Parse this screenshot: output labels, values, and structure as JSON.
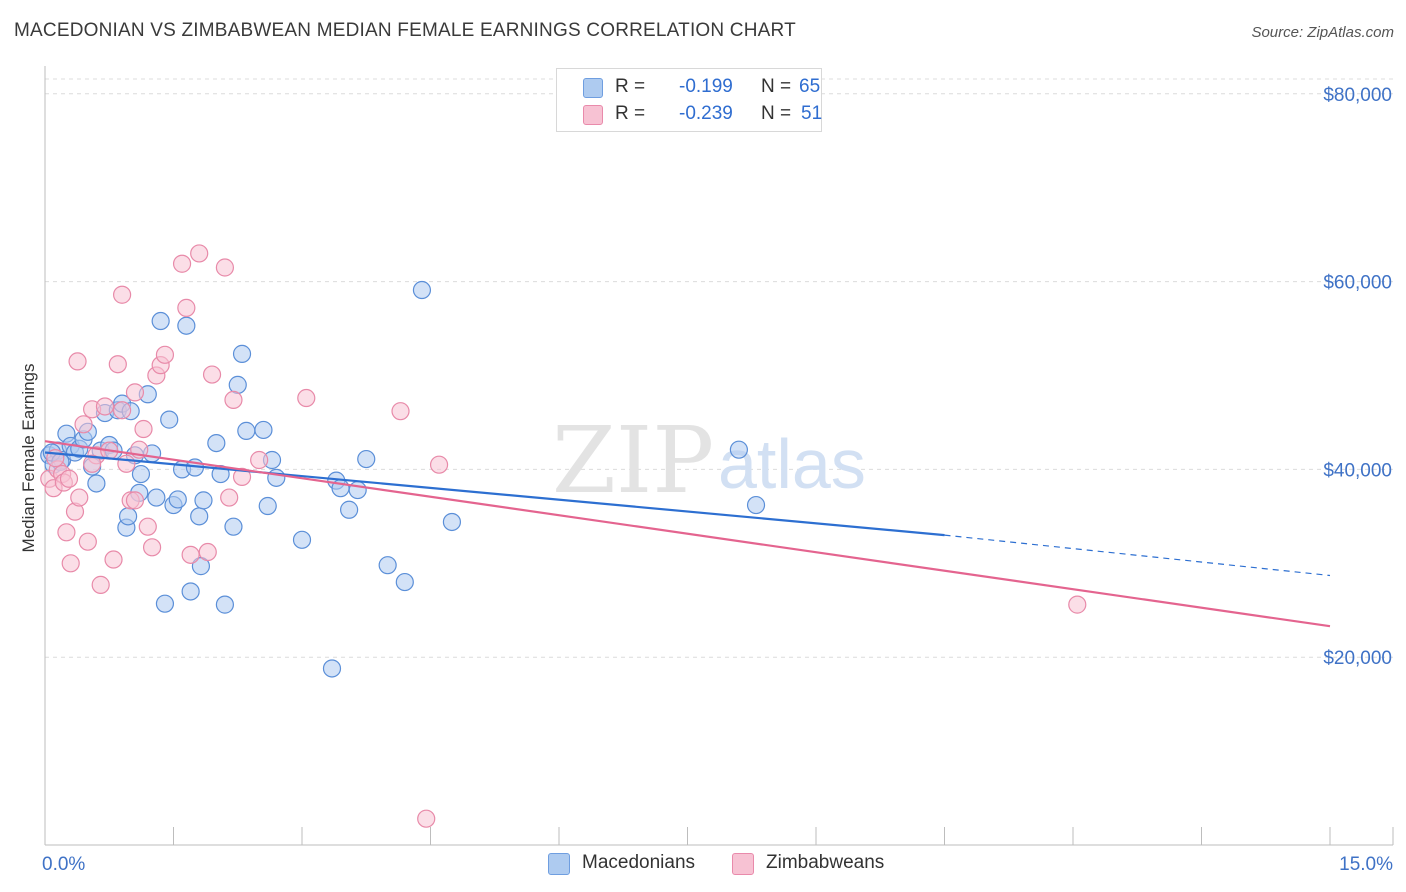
{
  "title": "MACEDONIAN VS ZIMBABWEAN MEDIAN FEMALE EARNINGS CORRELATION CHART",
  "source": "Source: ZipAtlas.com",
  "watermark": {
    "zip": "ZIP",
    "atlas": "atlas"
  },
  "legend_top": {
    "r_label": "R =",
    "n_label": "N =",
    "rows": [
      {
        "r": "-0.199",
        "n": "65",
        "color": "#aecbf0",
        "border": "#6f9ee0"
      },
      {
        "r": "-0.239",
        "n": "51",
        "color": "#f7c2d3",
        "border": "#e98aab"
      }
    ]
  },
  "legend_bottom": [
    {
      "label": "Macedonians",
      "color": "#aecbf0",
      "border": "#6f9ee0"
    },
    {
      "label": "Zimbabweans",
      "color": "#f7c2d3",
      "border": "#e98aab"
    }
  ],
  "chart_data": {
    "type": "scatter",
    "title": "MACEDONIAN VS ZIMBABWEAN MEDIAN FEMALE EARNINGS CORRELATION CHART",
    "xlabel": "",
    "ylabel": "Median Female Earnings",
    "xlim": [
      0,
      15
    ],
    "ylim": [
      0,
      82000
    ],
    "x_tick_labels": [
      "0.0%",
      "15.0%"
    ],
    "y_ticks": [
      20000,
      40000,
      60000,
      80000
    ],
    "y_tick_labels": [
      "$20,000",
      "$40,000",
      "$60,000",
      "$80,000"
    ],
    "series": [
      {
        "name": "Macedonians",
        "color": "#5b8fd8",
        "fill": "#aecbf0",
        "trend_color": "#2d6fd1",
        "trend": {
          "x_start": 0.0,
          "y_start": 41800,
          "x_end": 10.5,
          "y_end": 33000,
          "x_dash_end": 15.0,
          "y_dash_end": 28700
        },
        "points": [
          [
            0.05,
            41500
          ],
          [
            0.1,
            40500
          ],
          [
            0.15,
            42000
          ],
          [
            0.2,
            41000
          ],
          [
            0.25,
            43800
          ],
          [
            0.3,
            42500
          ],
          [
            0.35,
            41800
          ],
          [
            0.4,
            42200
          ],
          [
            0.45,
            43200
          ],
          [
            0.5,
            44000
          ],
          [
            0.55,
            40300
          ],
          [
            0.6,
            38500
          ],
          [
            0.65,
            42000
          ],
          [
            0.7,
            46000
          ],
          [
            0.75,
            42600
          ],
          [
            0.8,
            42000
          ],
          [
            0.85,
            46300
          ],
          [
            0.9,
            47000
          ],
          [
            0.95,
            33800
          ],
          [
            0.97,
            35000
          ],
          [
            1.0,
            46200
          ],
          [
            1.05,
            41500
          ],
          [
            1.1,
            37500
          ],
          [
            1.12,
            39500
          ],
          [
            1.2,
            48000
          ],
          [
            1.25,
            41700
          ],
          [
            1.3,
            37000
          ],
          [
            1.35,
            55800
          ],
          [
            1.4,
            25700
          ],
          [
            1.45,
            45300
          ],
          [
            1.5,
            36200
          ],
          [
            1.55,
            36800
          ],
          [
            1.6,
            40000
          ],
          [
            1.65,
            55300
          ],
          [
            1.7,
            27000
          ],
          [
            1.75,
            40200
          ],
          [
            1.8,
            35000
          ],
          [
            1.82,
            29700
          ],
          [
            1.85,
            36700
          ],
          [
            2.0,
            42800
          ],
          [
            2.05,
            39500
          ],
          [
            2.1,
            25600
          ],
          [
            2.2,
            33900
          ],
          [
            2.25,
            49000
          ],
          [
            2.3,
            52300
          ],
          [
            2.35,
            44100
          ],
          [
            2.55,
            44200
          ],
          [
            2.6,
            36100
          ],
          [
            2.65,
            41000
          ],
          [
            2.7,
            39100
          ],
          [
            3.0,
            32500
          ],
          [
            3.35,
            18800
          ],
          [
            3.4,
            38800
          ],
          [
            3.45,
            38000
          ],
          [
            3.55,
            35700
          ],
          [
            3.65,
            37800
          ],
          [
            3.75,
            41100
          ],
          [
            4.0,
            29800
          ],
          [
            4.2,
            28000
          ],
          [
            4.4,
            59100
          ],
          [
            4.75,
            34400
          ],
          [
            8.1,
            42100
          ],
          [
            8.3,
            36200
          ],
          [
            0.08,
            41800
          ],
          [
            0.18,
            40800
          ]
        ]
      },
      {
        "name": "Zimbabweans",
        "color": "#e88aa9",
        "fill": "#f7c2d3",
        "trend_color": "#e4648f",
        "trend": {
          "x_start": 0.0,
          "y_start": 43000,
          "x_end": 15.0,
          "y_end": 23300
        },
        "points": [
          [
            0.05,
            39000
          ],
          [
            0.1,
            38000
          ],
          [
            0.15,
            40000
          ],
          [
            0.2,
            39500
          ],
          [
            0.25,
            33300
          ],
          [
            0.3,
            30000
          ],
          [
            0.35,
            35500
          ],
          [
            0.38,
            51500
          ],
          [
            0.4,
            37000
          ],
          [
            0.45,
            44800
          ],
          [
            0.5,
            32300
          ],
          [
            0.55,
            46400
          ],
          [
            0.6,
            41500
          ],
          [
            0.65,
            27700
          ],
          [
            0.7,
            46700
          ],
          [
            0.75,
            42000
          ],
          [
            0.8,
            30400
          ],
          [
            0.85,
            51200
          ],
          [
            0.9,
            58600
          ],
          [
            0.95,
            40600
          ],
          [
            1.0,
            36700
          ],
          [
            1.05,
            48200
          ],
          [
            1.1,
            42100
          ],
          [
            1.15,
            44300
          ],
          [
            1.2,
            33900
          ],
          [
            1.25,
            31700
          ],
          [
            1.3,
            50000
          ],
          [
            1.35,
            51100
          ],
          [
            1.4,
            52200
          ],
          [
            1.6,
            61900
          ],
          [
            1.65,
            57200
          ],
          [
            1.7,
            30900
          ],
          [
            1.8,
            63000
          ],
          [
            1.9,
            31200
          ],
          [
            1.95,
            50100
          ],
          [
            2.1,
            61500
          ],
          [
            2.15,
            37000
          ],
          [
            2.2,
            47400
          ],
          [
            2.3,
            39200
          ],
          [
            2.5,
            41000
          ],
          [
            3.05,
            47600
          ],
          [
            4.15,
            46200
          ],
          [
            4.6,
            40500
          ],
          [
            0.12,
            41200
          ],
          [
            0.22,
            38600
          ],
          [
            0.28,
            39000
          ],
          [
            4.45,
            2800
          ],
          [
            12.05,
            25600
          ],
          [
            0.9,
            46300
          ],
          [
            0.55,
            40600
          ],
          [
            1.05,
            36700
          ]
        ]
      }
    ]
  }
}
